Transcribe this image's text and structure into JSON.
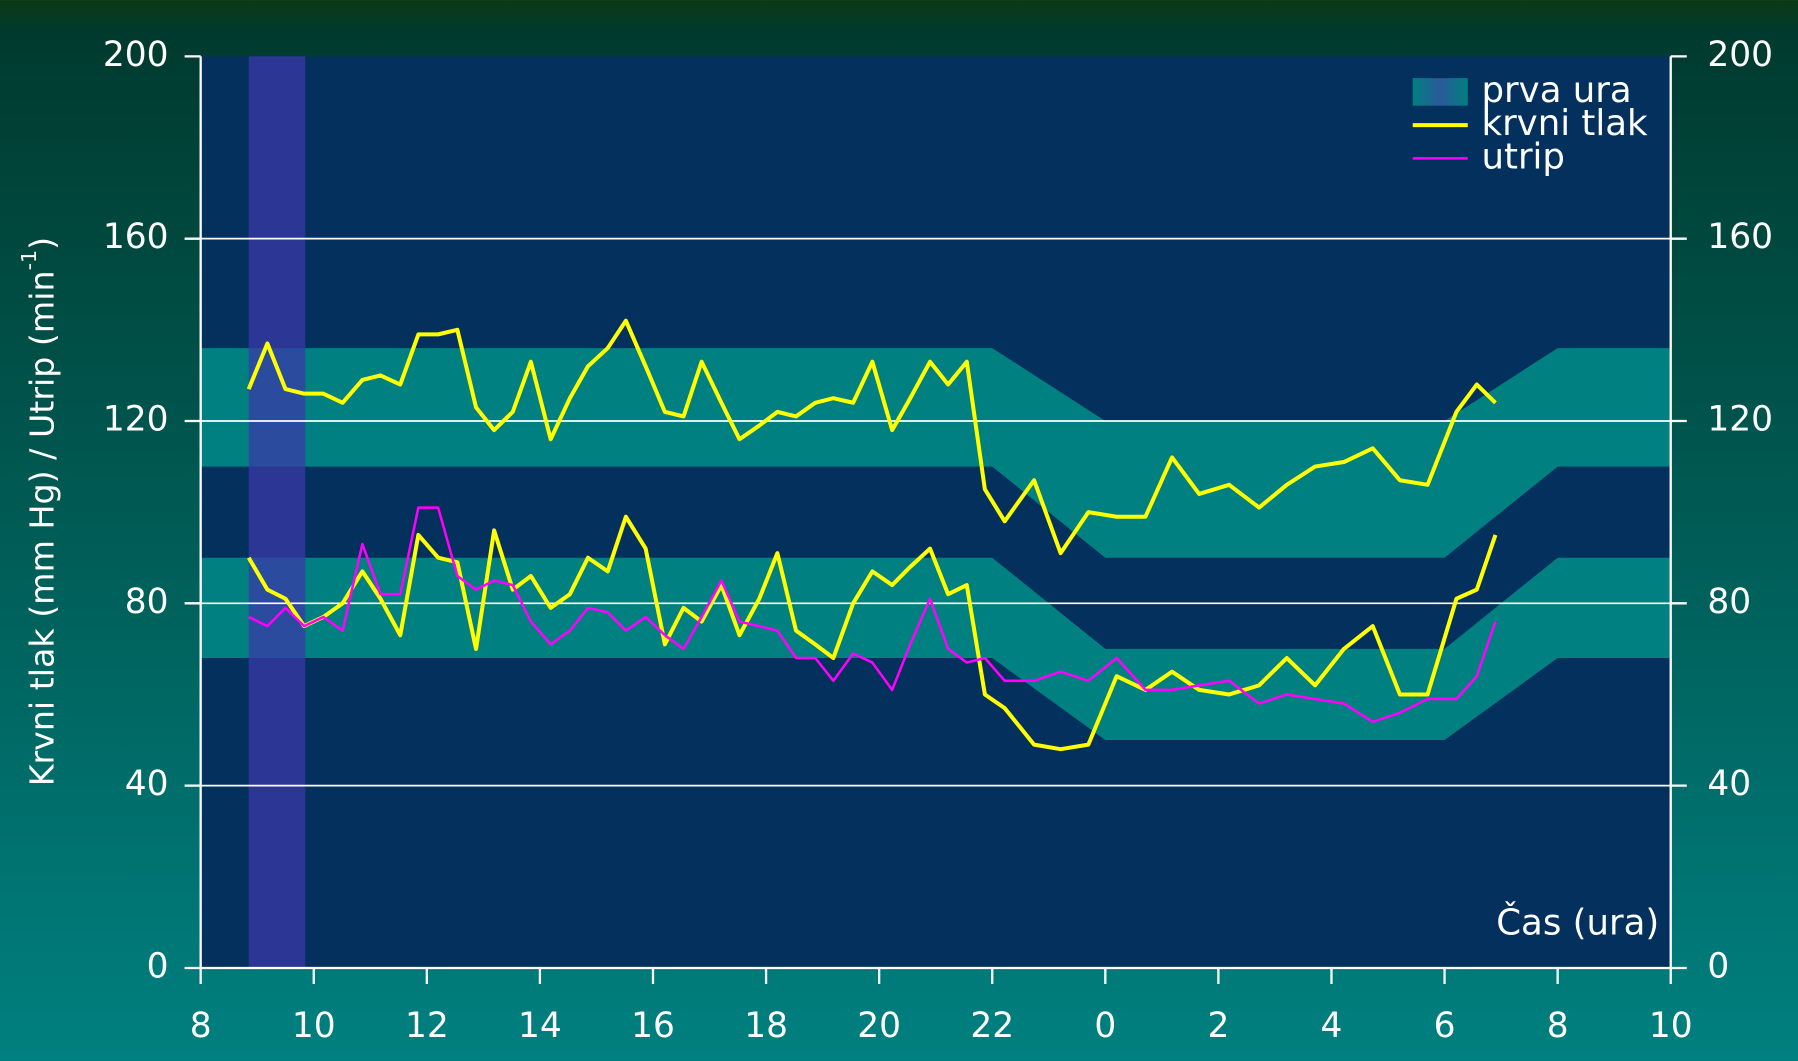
{
  "chart_data": {
    "type": "line",
    "ylabel": "Krvni tlak (mm Hg) / Utrip (min",
    "ylabel_sup": "-1",
    "ylabel_end": ")",
    "xlabel": "Čas (ura)",
    "xlim": [
      8,
      34
    ],
    "xticks": [
      8,
      10,
      12,
      14,
      16,
      18,
      20,
      22,
      {
        "value": 24,
        "label": "0"
      },
      {
        "value": 26,
        "label": "2"
      },
      {
        "value": 28,
        "label": "4"
      },
      {
        "value": 30,
        "label": "6"
      },
      {
        "value": 32,
        "label": "8"
      },
      {
        "value": 34,
        "label": "10"
      }
    ],
    "ylim": [
      0,
      200
    ],
    "yticks": [
      0,
      40,
      80,
      120,
      160,
      200
    ],
    "y2lim": [
      0,
      200
    ],
    "y2ticks": [
      0,
      40,
      80,
      120,
      160,
      200
    ],
    "grid": true,
    "legend": "top-right",
    "highlight": {
      "name": "prva ura",
      "x": [
        8.85,
        9.85
      ],
      "color": "#3a3aa8"
    },
    "reference_bands": [
      {
        "color": "#008080",
        "x": [
          8,
          22,
          24,
          30,
          32,
          34
        ],
        "lower": [
          110,
          110,
          90,
          90,
          110,
          110
        ],
        "upper": [
          136,
          136,
          120,
          120,
          136,
          136
        ]
      },
      {
        "color": "#008080",
        "x": [
          8,
          22,
          24,
          30,
          32,
          34
        ],
        "lower": [
          68,
          68,
          50,
          50,
          68,
          68
        ],
        "upper": [
          90,
          90,
          70,
          70,
          90,
          90
        ]
      }
    ],
    "x": [
      8.85,
      9.18,
      9.5,
      9.83,
      10.17,
      10.51,
      10.86,
      11.18,
      11.53,
      11.85,
      12.2,
      12.54,
      12.87,
      13.19,
      13.52,
      13.84,
      14.19,
      14.53,
      14.85,
      15.2,
      15.52,
      15.87,
      16.21,
      16.54,
      16.86,
      17.21,
      17.53,
      17.88,
      18.2,
      18.53,
      18.87,
      19.19,
      19.54,
      19.88,
      20.23,
      20.55,
      20.9,
      21.22,
      21.55,
      21.87,
      22.22,
      22.74,
      23.21,
      23.7,
      24.2,
      24.71,
      25.18,
      25.66,
      26.19,
      26.72,
      27.21,
      27.71,
      28.22,
      28.73,
      29.21,
      29.7,
      30.21,
      30.57,
      30.9
    ],
    "series": [
      {
        "name": "krvni tlak",
        "color": "#ffff00",
        "lines": [
          [
            127,
            137,
            127,
            126,
            126,
            124,
            129,
            130,
            128,
            139,
            139,
            140,
            123,
            118,
            122,
            133,
            116,
            125,
            132,
            136,
            142,
            132,
            122,
            121,
            133,
            124,
            116,
            119,
            122,
            121,
            124,
            125,
            124,
            133,
            118,
            125,
            133,
            128,
            133,
            105,
            98,
            107,
            91,
            100,
            99,
            99,
            112,
            104,
            106,
            101,
            106,
            110,
            111,
            114,
            107,
            106,
            122,
            128,
            124
          ],
          [
            90,
            83,
            81,
            75,
            77,
            80,
            87,
            81,
            73,
            95,
            90,
            89,
            70,
            96,
            83,
            86,
            79,
            82,
            90,
            87,
            99,
            92,
            71,
            79,
            76,
            84,
            73,
            81,
            91,
            74,
            71,
            68,
            80,
            87,
            84,
            88,
            92,
            82,
            84,
            60,
            57,
            49,
            48,
            49,
            64,
            61,
            65,
            61,
            60,
            62,
            68,
            62,
            70,
            75,
            60,
            60,
            81,
            83,
            95
          ]
        ]
      },
      {
        "name": "utrip",
        "color": "#ff00ff",
        "lines": [
          [
            77,
            75,
            79,
            75,
            77,
            74,
            93,
            82,
            82,
            101,
            101,
            86,
            83,
            85,
            84,
            76,
            71,
            74,
            79,
            78,
            74,
            77,
            73,
            70,
            77,
            85,
            76,
            75,
            74,
            68,
            68,
            63,
            69,
            67,
            61,
            71,
            81,
            70,
            67,
            68,
            63,
            63,
            65,
            63,
            68,
            61,
            61,
            62,
            63,
            58,
            60,
            59,
            58,
            54,
            56,
            59,
            59,
            64,
            76
          ]
        ]
      }
    ]
  }
}
